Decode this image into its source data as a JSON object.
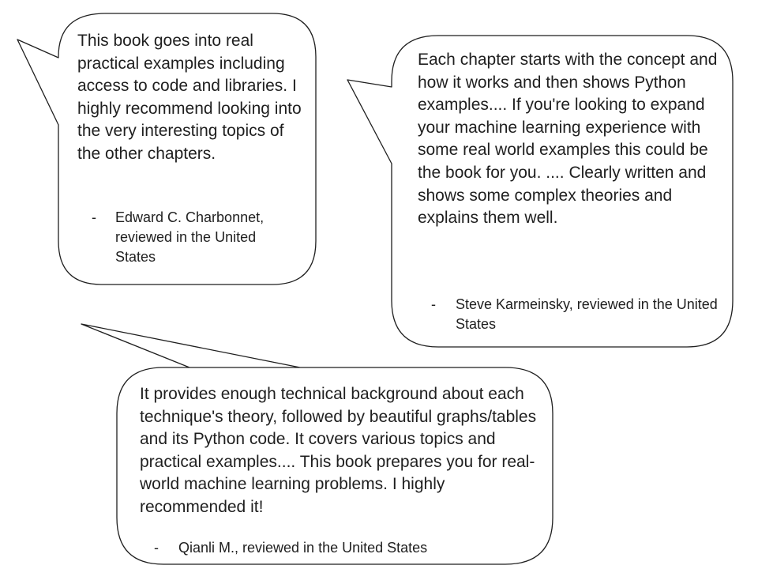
{
  "reviews": [
    {
      "quote": "This book goes into real practical examples including access to code and libraries. I highly recommend looking into the very interesting topics of the other chapters.",
      "dash": "-",
      "reviewer": "Edward C. Charbonnet, reviewed in the United States"
    },
    {
      "quote": "Each chapter starts with the concept and how it works and then shows Python examples.... If you're looking to expand your machine learning experience with some real world examples this could be the book for you. .... Clearly written and shows some complex theories and explains them well.",
      "dash": "-",
      "reviewer": "Steve Karmeinsky, reviewed in the United States"
    },
    {
      "quote": "It provides enough technical background about each technique's theory, followed by beautiful graphs/tables and its Python code. It covers various topics and practical examples.... This book prepares you for real-world machine learning problems. I highly recommended it!",
      "dash": "-",
      "reviewer": "Qianli M., reviewed in the United States"
    }
  ],
  "colors": {
    "bubble_stroke": "#1f1f1f",
    "bubble_fill": "#ffffff",
    "text": "#1f1f1f"
  }
}
